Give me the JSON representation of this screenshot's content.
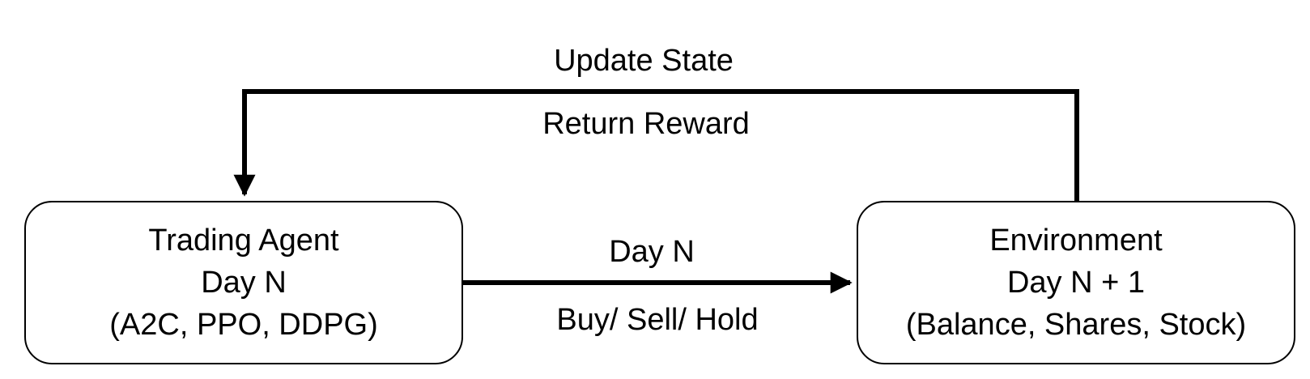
{
  "agent_box": {
    "line1": "Trading Agent",
    "line2": "Day N",
    "line3": "(A2C, PPO, DDPG)"
  },
  "environment_box": {
    "line1": "Environment",
    "line2": "Day N + 1",
    "line3": "(Balance, Shares, Stock)"
  },
  "feedback_arrow": {
    "label_top": "Update State",
    "label_bottom": "Return Reward"
  },
  "action_arrow": {
    "label_top": "Day N",
    "label_bottom": "Buy/ Sell/ Hold"
  },
  "colors": {
    "stroke": "#000000",
    "background": "#ffffff"
  }
}
